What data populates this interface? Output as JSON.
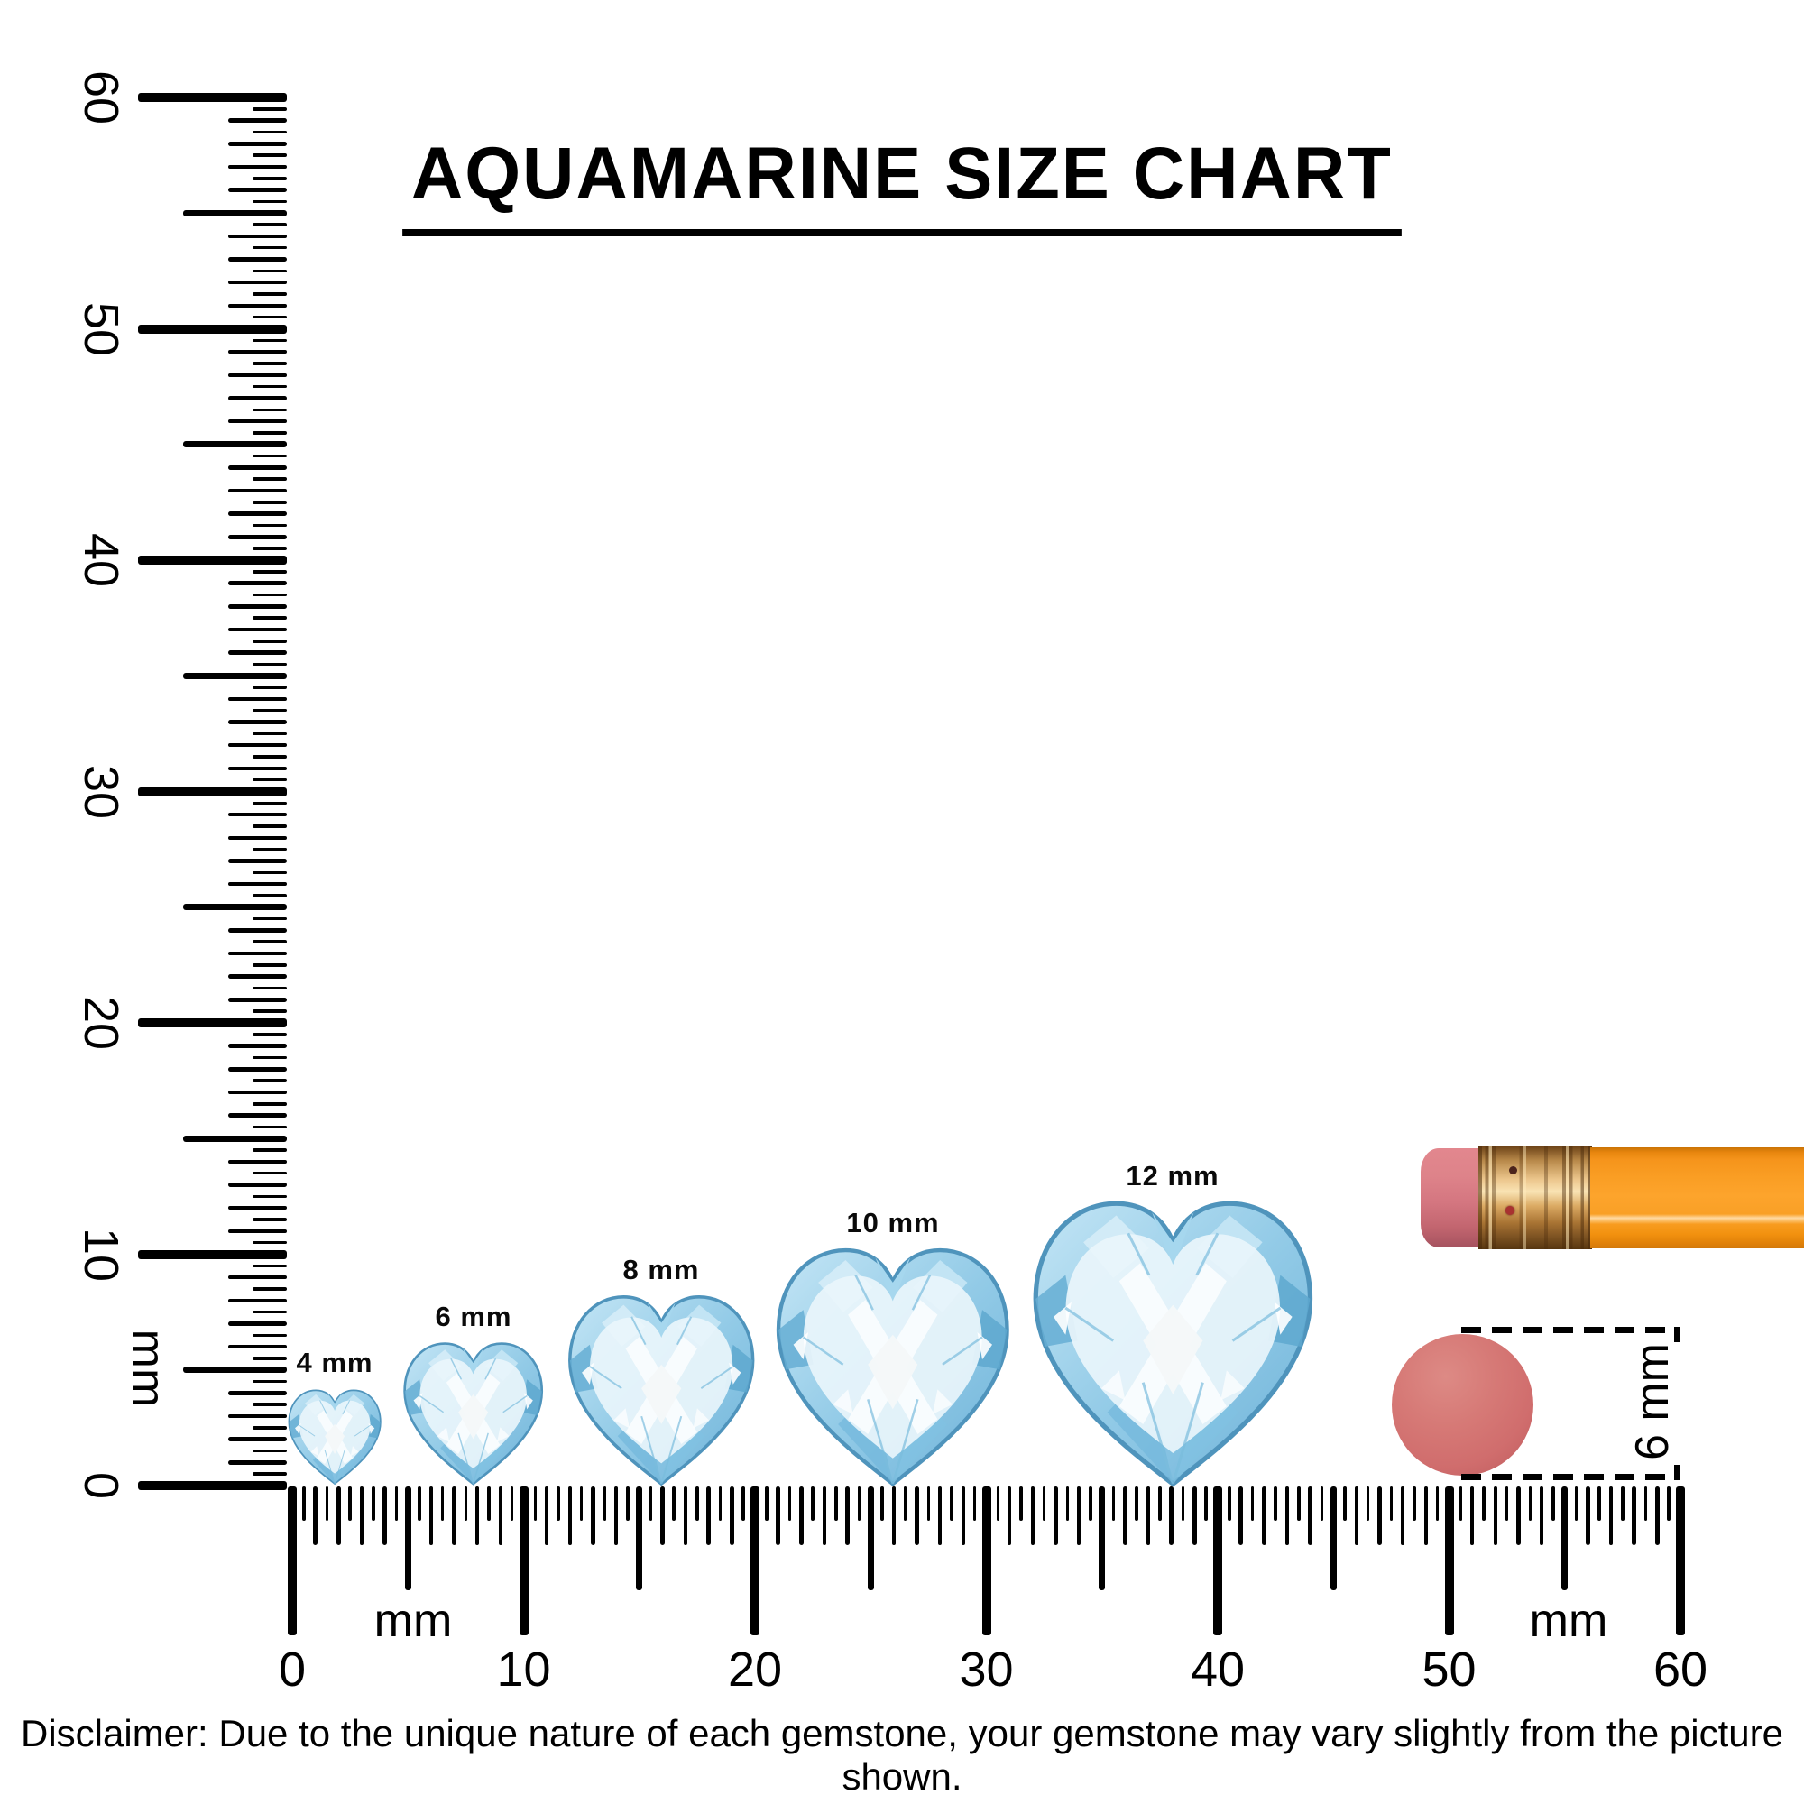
{
  "title": {
    "text": "AQUAMARINE SIZE CHART"
  },
  "vertical_ruler": {
    "unit_label": "mm",
    "tick_labels": [
      "0",
      "10",
      "20",
      "30",
      "40",
      "50",
      "60"
    ],
    "range_mm": [
      0,
      60
    ]
  },
  "horizontal_ruler": {
    "unit_label_left": "mm",
    "unit_label_right": "mm",
    "tick_labels": [
      "0",
      "10",
      "20",
      "30",
      "40",
      "50",
      "60"
    ],
    "range_mm": [
      0,
      60
    ]
  },
  "gems": [
    {
      "label": "4 mm",
      "size_mm": 4
    },
    {
      "label": "6 mm",
      "size_mm": 6
    },
    {
      "label": "8 mm",
      "size_mm": 8
    },
    {
      "label": "10 mm",
      "size_mm": 10
    },
    {
      "label": "12 mm",
      "size_mm": 12
    }
  ],
  "gem_colors": {
    "light": "#e8f4fa",
    "mid": "#9fd2ea",
    "deep": "#5ea8cf",
    "edge": "#4f94bc"
  },
  "pencil": {
    "body_color": "#f79820",
    "ferrule_color": "#d9a45c",
    "eraser_color": "#d47680"
  },
  "eraser_measure": {
    "label": "6 mm",
    "diameter_mm": 6,
    "dot_color": "#d06d6d"
  },
  "disclaimer": {
    "text": "Disclaimer: Due to the unique nature of each gemstone, your gemstone may vary slightly from the picture shown."
  }
}
